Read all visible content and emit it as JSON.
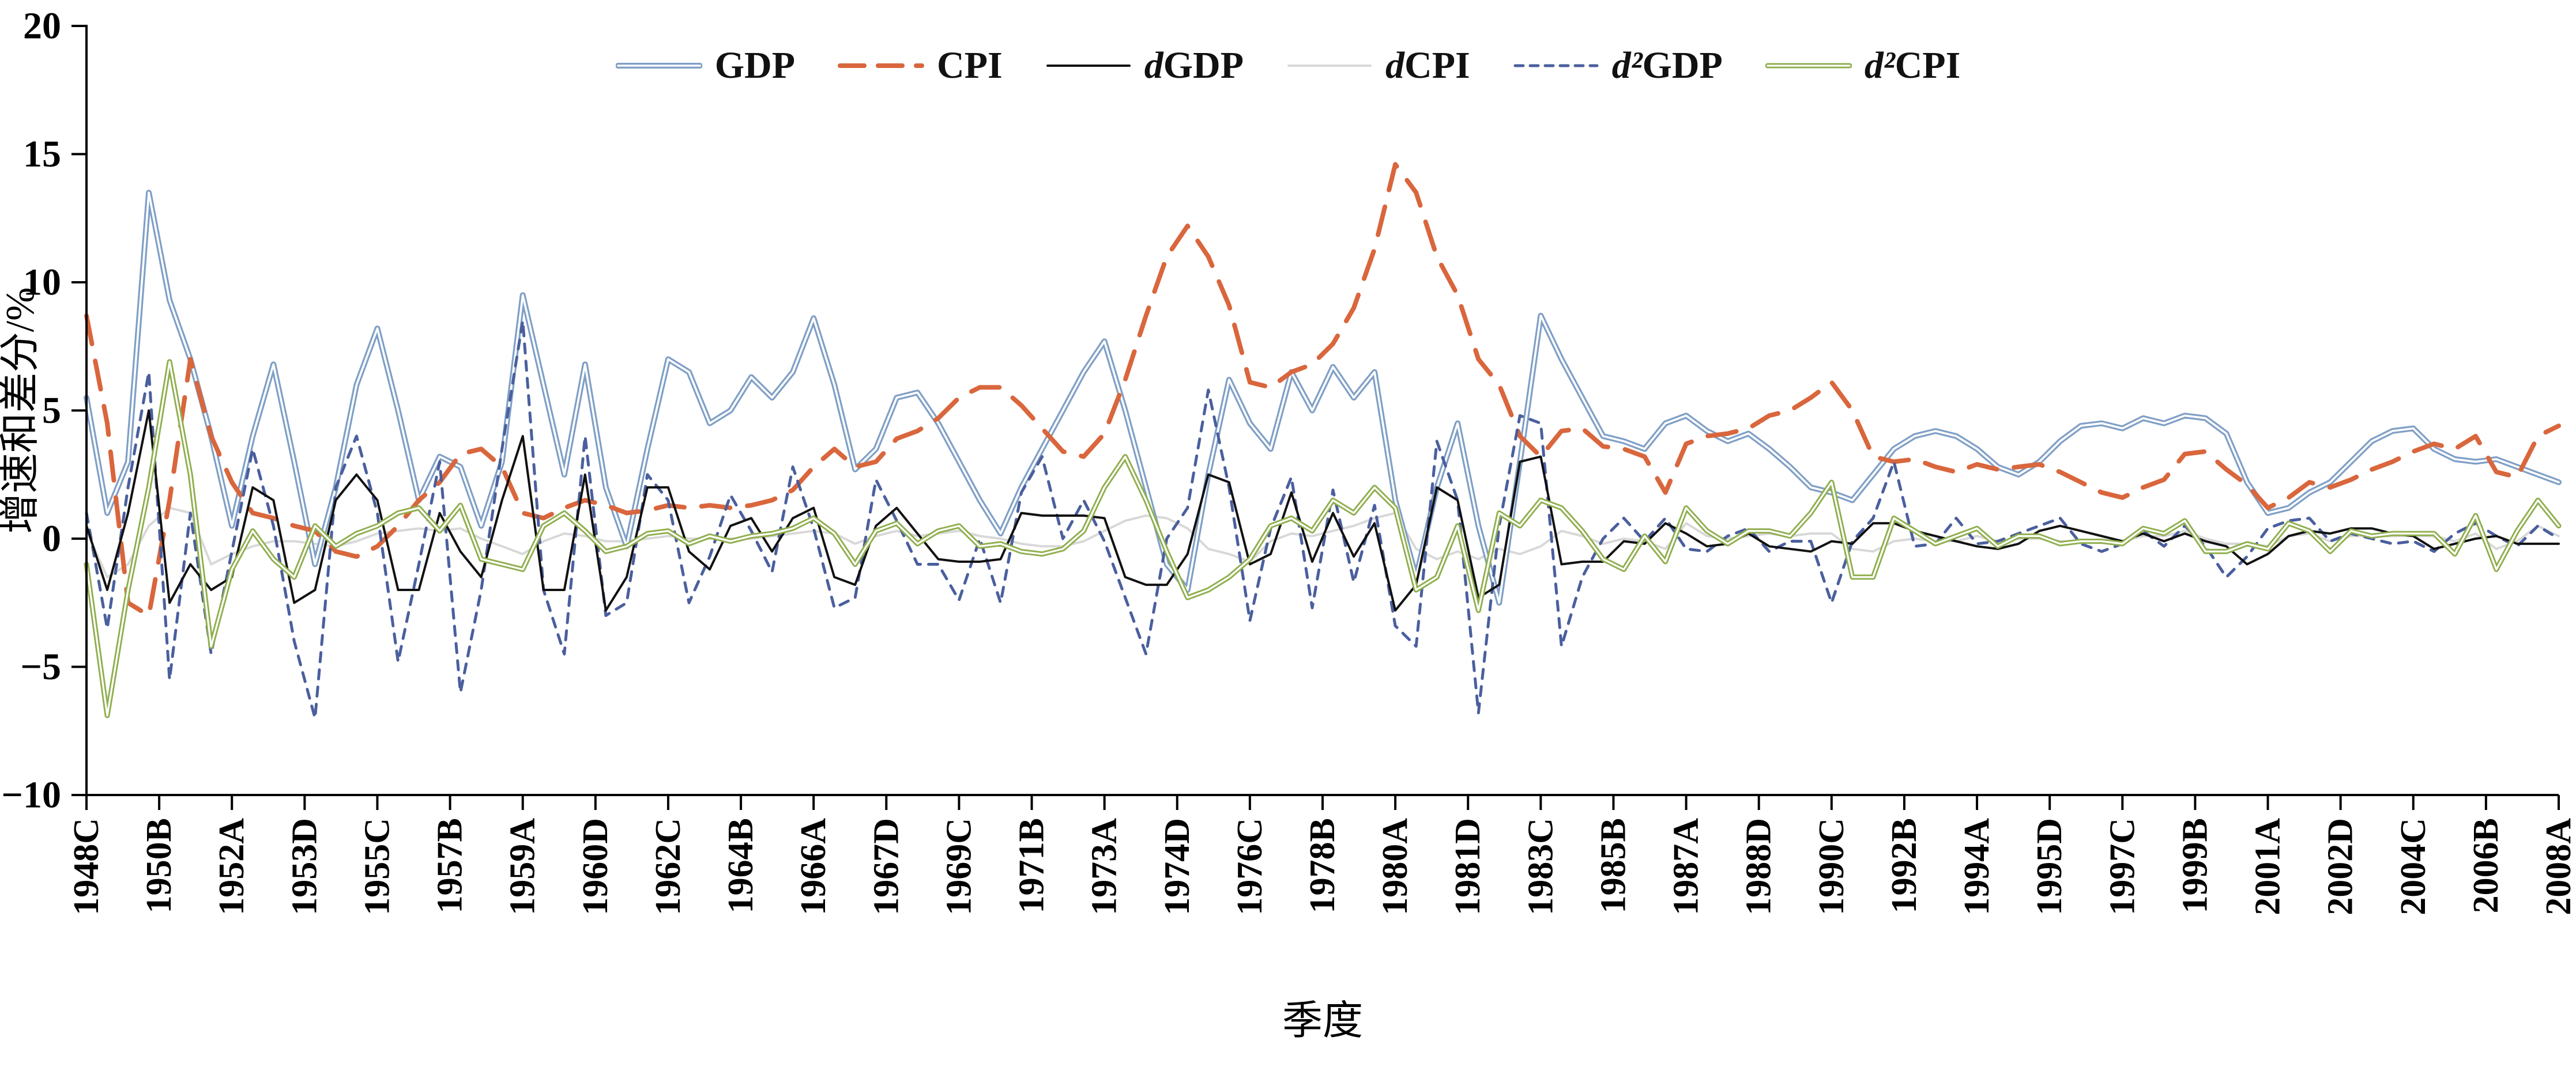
{
  "chart_data": {
    "type": "line",
    "title": "",
    "xlabel": "季度",
    "ylabel": "增速和差分/%",
    "ylim": [
      -10,
      20
    ],
    "yticks": [
      -10,
      -5,
      0,
      5,
      10,
      15,
      20
    ],
    "grid": false,
    "legend_position": "top",
    "x_total_quarters": 238,
    "x_tick_step_quarters": 7,
    "points_step_quarters": 2,
    "x_tick_labels": [
      "1948C",
      "1950B",
      "1952A",
      "1953D",
      "1955C",
      "1957B",
      "1959A",
      "1960D",
      "1962C",
      "1964B",
      "1966A",
      "1967D",
      "1969C",
      "1971B",
      "1973A",
      "1974D",
      "1976C",
      "1978B",
      "1980A",
      "1981D",
      "1983C",
      "1985B",
      "1987A",
      "1988D",
      "1990C",
      "1992B",
      "1994A",
      "1995D",
      "1997C",
      "1999B",
      "2001A",
      "2002D",
      "2004C",
      "2006B",
      "2008A"
    ],
    "series": [
      {
        "name": "GDP",
        "color": "#7F9FC6",
        "style": "double",
        "width": 10,
        "values": [
          5.5,
          1.0,
          3.0,
          13.5,
          9.3,
          7.0,
          4.0,
          0.5,
          4.0,
          6.8,
          3.0,
          -1.0,
          2.0,
          6.0,
          8.2,
          5.0,
          1.5,
          3.2,
          2.8,
          0.5,
          3.0,
          9.5,
          6.0,
          2.5,
          6.8,
          2.0,
          -0.3,
          3.5,
          7.0,
          6.5,
          4.5,
          5.0,
          6.3,
          5.5,
          6.5,
          8.6,
          6.0,
          2.7,
          3.5,
          5.5,
          5.7,
          4.5,
          3.0,
          1.5,
          0.2,
          2.0,
          3.5,
          5.0,
          6.5,
          7.7,
          5.0,
          2.0,
          -1.0,
          -2.0,
          2.5,
          6.2,
          4.5,
          3.5,
          6.5,
          5.0,
          6.7,
          5.5,
          6.5,
          1.5,
          -1.5,
          2.0,
          4.5,
          0.5,
          -2.5,
          3.0,
          8.7,
          7.0,
          5.5,
          4.0,
          3.8,
          3.5,
          4.5,
          4.8,
          4.2,
          3.8,
          4.1,
          3.5,
          2.8,
          2.0,
          1.8,
          1.5,
          2.5,
          3.5,
          4.0,
          4.2,
          4.0,
          3.5,
          2.8,
          2.5,
          3.0,
          3.8,
          4.4,
          4.5,
          4.3,
          4.7,
          4.5,
          4.8,
          4.7,
          4.1,
          2.2,
          1.0,
          1.2,
          1.8,
          2.2,
          3.0,
          3.8,
          4.2,
          4.3,
          3.5,
          3.1,
          3.0,
          3.1,
          2.8,
          2.5,
          2.2
        ]
      },
      {
        "name": "CPI",
        "color": "#D9663C",
        "style": "dashed-long",
        "width": 8,
        "values": [
          8.7,
          4.5,
          -2.5,
          -3.0,
          1.5,
          7.0,
          4.0,
          2.2,
          1.0,
          0.8,
          0.5,
          0.3,
          -0.5,
          -0.7,
          -0.3,
          0.5,
          1.5,
          2.2,
          3.3,
          3.5,
          2.8,
          1.0,
          0.8,
          1.2,
          1.5,
          1.3,
          1.0,
          1.1,
          1.3,
          1.2,
          1.3,
          1.2,
          1.3,
          1.5,
          1.9,
          2.8,
          3.5,
          2.8,
          3.0,
          3.9,
          4.2,
          4.7,
          5.5,
          5.9,
          5.9,
          5.2,
          4.3,
          3.4,
          3.2,
          4.1,
          6.2,
          8.7,
          11.0,
          12.2,
          11.0,
          9.1,
          6.1,
          5.9,
          6.5,
          6.8,
          7.6,
          9.0,
          11.3,
          14.6,
          13.5,
          11.0,
          9.5,
          7.0,
          6.0,
          4.0,
          3.2,
          4.2,
          4.3,
          3.6,
          3.5,
          3.2,
          1.8,
          3.7,
          4.0,
          4.1,
          4.3,
          4.8,
          5.0,
          5.5,
          6.1,
          5.0,
          3.2,
          3.0,
          3.1,
          2.8,
          2.6,
          2.9,
          2.7,
          2.8,
          2.9,
          2.6,
          2.2,
          1.8,
          1.6,
          2.0,
          2.3,
          3.3,
          3.4,
          2.7,
          2.1,
          1.2,
          1.6,
          2.2,
          2.0,
          2.3,
          2.7,
          3.0,
          3.4,
          3.7,
          3.5,
          4.0,
          2.6,
          2.4,
          4.0,
          4.4
        ]
      },
      {
        "name": "dGDP",
        "color": "#111111",
        "style": "solid",
        "width": 4,
        "values": [
          0.5,
          -2.0,
          1.0,
          5.0,
          -2.5,
          -1.0,
          -2.0,
          -1.5,
          2.0,
          1.5,
          -2.5,
          -2.0,
          1.5,
          2.5,
          1.5,
          -2.0,
          -2.0,
          1.0,
          -0.5,
          -1.5,
          1.5,
          4.0,
          -2.0,
          -2.0,
          2.5,
          -2.8,
          -1.5,
          2.0,
          2.0,
          -0.5,
          -1.2,
          0.5,
          0.8,
          -0.5,
          0.8,
          1.2,
          -1.5,
          -1.8,
          0.5,
          1.2,
          0.2,
          -0.8,
          -0.9,
          -0.9,
          -0.8,
          1.0,
          0.9,
          0.9,
          0.9,
          0.8,
          -1.5,
          -1.8,
          -1.8,
          -0.6,
          2.5,
          2.2,
          -1.0,
          -0.6,
          1.8,
          -0.9,
          1.0,
          -0.7,
          0.6,
          -2.8,
          -1.8,
          2.0,
          1.5,
          -2.3,
          -1.8,
          3.0,
          3.2,
          -1.0,
          -0.9,
          -0.9,
          -0.1,
          -0.2,
          0.6,
          0.2,
          -0.3,
          -0.2,
          0.2,
          -0.3,
          -0.4,
          -0.5,
          -0.1,
          -0.2,
          0.6,
          0.6,
          0.3,
          0.1,
          -0.1,
          -0.3,
          -0.4,
          -0.2,
          0.3,
          0.5,
          0.3,
          0.1,
          -0.1,
          0.2,
          -0.1,
          0.2,
          -0.1,
          -0.3,
          -1.0,
          -0.6,
          0.1,
          0.3,
          0.2,
          0.4,
          0.4,
          0.2,
          0.1,
          -0.4,
          -0.2,
          0.0,
          0.1,
          -0.2,
          -0.2,
          -0.2
        ]
      },
      {
        "name": "dCPI",
        "color": "#D8D8D8",
        "style": "solid",
        "width": 4,
        "values": [
          0.3,
          -1.5,
          -1.0,
          0.5,
          1.2,
          1.0,
          -1.0,
          -0.6,
          -0.3,
          -0.1,
          -0.1,
          -0.2,
          -0.3,
          -0.1,
          0.2,
          0.3,
          0.4,
          0.3,
          0.4,
          0.0,
          -0.3,
          -0.6,
          -0.1,
          0.2,
          0.1,
          -0.1,
          -0.1,
          0.0,
          0.1,
          0.0,
          0.0,
          0.0,
          0.0,
          0.1,
          0.2,
          0.3,
          0.2,
          -0.2,
          0.1,
          0.3,
          0.1,
          0.2,
          0.3,
          0.1,
          0.0,
          -0.2,
          -0.3,
          -0.3,
          -0.1,
          0.3,
          0.7,
          0.9,
          0.8,
          0.4,
          -0.4,
          -0.6,
          -0.9,
          -0.1,
          0.2,
          0.1,
          0.3,
          0.5,
          0.8,
          1.0,
          -0.4,
          -0.8,
          -0.5,
          -0.8,
          -0.4,
          -0.6,
          -0.3,
          0.3,
          0.1,
          -0.2,
          0.0,
          -0.1,
          -0.4,
          0.6,
          0.1,
          0.0,
          0.1,
          0.2,
          0.1,
          0.2,
          0.2,
          -0.4,
          -0.5,
          -0.1,
          0.0,
          -0.1,
          -0.1,
          0.1,
          -0.1,
          0.0,
          0.0,
          -0.1,
          -0.1,
          -0.1,
          -0.1,
          0.1,
          0.1,
          0.3,
          0.0,
          -0.2,
          -0.2,
          -0.3,
          0.1,
          0.2,
          -0.1,
          0.1,
          0.1,
          0.1,
          0.1,
          0.1,
          -0.1,
          0.2,
          -0.4,
          -0.1,
          0.5,
          0.1
        ]
      },
      {
        "name": "d²GDP",
        "color": "#4A5F9E",
        "style": "dashed-short",
        "width": 5,
        "values": [
          1.0,
          -3.5,
          2.0,
          6.5,
          -5.5,
          1.0,
          -4.5,
          -0.5,
          3.5,
          0.5,
          -4.0,
          -7.0,
          2.0,
          4.0,
          1.0,
          -4.8,
          -1.0,
          3.0,
          -6.0,
          -2.0,
          3.5,
          8.5,
          -2.0,
          -4.5,
          4.0,
          -3.0,
          -2.5,
          2.5,
          1.5,
          -2.5,
          -0.7,
          1.7,
          0.3,
          -1.3,
          2.8,
          0.4,
          -2.7,
          -2.3,
          2.3,
          0.7,
          -1.0,
          -1.0,
          -2.4,
          0.0,
          -2.5,
          1.8,
          3.2,
          0.0,
          1.5,
          -0.1,
          -2.3,
          -4.5,
          0.0,
          1.2,
          5.8,
          2.0,
          -3.2,
          0.4,
          2.4,
          -2.7,
          1.9,
          -1.7,
          1.3,
          -3.4,
          -4.2,
          3.8,
          1.5,
          -6.8,
          0.5,
          4.8,
          4.5,
          -4.2,
          -1.5,
          0.0,
          0.8,
          -0.1,
          0.8,
          -0.4,
          -0.5,
          0.1,
          0.4,
          -0.5,
          -0.1,
          -0.1,
          -2.5,
          -0.1,
          0.8,
          3.0,
          -0.3,
          -0.2,
          0.8,
          -0.2,
          -0.1,
          0.2,
          0.5,
          0.8,
          -0.2,
          -0.5,
          -0.2,
          0.3,
          -0.3,
          0.5,
          -0.3,
          -1.5,
          -0.7,
          0.4,
          0.7,
          0.8,
          -0.1,
          0.2,
          0.0,
          -0.2,
          -0.1,
          -0.5,
          0.2,
          0.6,
          0.1,
          -0.3,
          0.5,
          0.0
        ]
      },
      {
        "name": "d²CPI",
        "color": "#8FAE4D",
        "style": "double",
        "width": 9,
        "values": [
          -1.0,
          -6.9,
          -2.0,
          2.0,
          6.9,
          2.5,
          -4.2,
          -1.2,
          0.3,
          -0.8,
          -1.5,
          0.5,
          -0.3,
          0.2,
          0.5,
          1.0,
          1.2,
          0.3,
          1.3,
          -0.8,
          -1.0,
          -1.2,
          0.5,
          1.0,
          0.3,
          -0.5,
          -0.3,
          0.2,
          0.3,
          -0.2,
          0.1,
          -0.1,
          0.1,
          0.2,
          0.4,
          0.8,
          0.2,
          -1.0,
          0.3,
          0.6,
          -0.2,
          0.3,
          0.5,
          -0.3,
          -0.2,
          -0.5,
          -0.6,
          -0.4,
          0.3,
          2.0,
          3.2,
          1.5,
          -0.5,
          -2.3,
          -2.0,
          -1.5,
          -0.8,
          0.5,
          0.8,
          0.3,
          1.5,
          1.0,
          2.0,
          1.2,
          -2.0,
          -1.5,
          0.5,
          -2.8,
          1.0,
          0.5,
          1.5,
          1.2,
          0.3,
          -0.8,
          -1.2,
          0.1,
          -0.9,
          1.2,
          0.3,
          -0.2,
          0.3,
          0.3,
          0.1,
          1.0,
          2.2,
          -1.5,
          -1.5,
          0.8,
          0.3,
          -0.2,
          0.1,
          0.4,
          -0.3,
          0.1,
          0.1,
          -0.2,
          -0.1,
          -0.1,
          -0.2,
          0.4,
          0.2,
          0.7,
          -0.5,
          -0.5,
          -0.2,
          -0.4,
          0.6,
          0.3,
          -0.5,
          0.3,
          0.1,
          0.2,
          0.2,
          0.2,
          -0.6,
          0.9,
          -1.2,
          0.3,
          1.5,
          0.5
        ]
      }
    ]
  }
}
